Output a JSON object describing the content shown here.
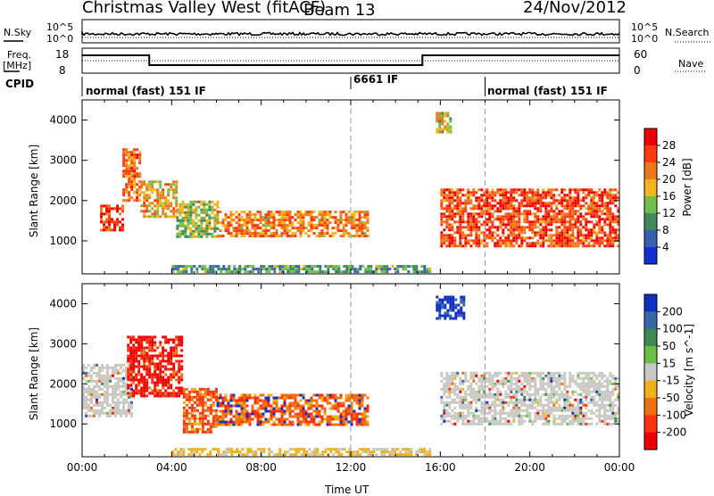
{
  "header": {
    "station": "Christmas Valley West (fitACF)",
    "beam": "Beam 13",
    "date": "24/Nov/2012"
  },
  "top_panel": {
    "nsky_label": "N.Sky",
    "nsky_ticks": [
      "10^5",
      "10^0"
    ],
    "nsearch_label": "N.Search",
    "nsearch_ticks": [
      "10^5",
      "10^0"
    ],
    "freq_label_1": "Freq.",
    "freq_label_2": "[MHz]",
    "freq_ticks": [
      "18",
      "8"
    ],
    "nave_label": "Nave",
    "nave_ticks": [
      "60",
      "0"
    ],
    "cpid_label": "CPID",
    "cpid_segments": [
      {
        "label": "normal (fast) 151 IF",
        "start_h": 0
      },
      {
        "label": "6661 IF",
        "start_h": 12
      },
      {
        "label": "normal (fast) 151 IF",
        "start_h": 18
      }
    ],
    "frequency_steps": [
      {
        "start_h": 0,
        "end_h": 3,
        "level": "high"
      },
      {
        "start_h": 3,
        "end_h": 15.2,
        "level": "low"
      },
      {
        "start_h": 15.2,
        "end_h": 24,
        "level": "high"
      }
    ]
  },
  "chart_data": [
    {
      "type": "heatmap",
      "panel": "power",
      "ylabel": "Slant Range [km]",
      "xlabel": "Time UT",
      "x_ticks": [
        "00:00",
        "04:00",
        "08:00",
        "12:00",
        "16:00",
        "20:00",
        "00:00"
      ],
      "xlim_hours": [
        0,
        24
      ],
      "y_ticks": [
        1000,
        2000,
        3000,
        4000
      ],
      "ylim_km": [
        180,
        4500
      ],
      "colorbar_label": "Power [dB]",
      "colorbar_ticks": [
        4,
        8,
        12,
        16,
        20,
        24,
        28
      ],
      "colorbar_range": [
        0,
        32
      ],
      "colors": [
        "#1030d0",
        "#3a5fb0",
        "#3f8a5c",
        "#6ec04a",
        "#f0b41e",
        "#f07818",
        "#ff3a10",
        "#ee0000"
      ],
      "echo_regions": [
        {
          "t0": 0.8,
          "t1": 1.8,
          "r0": 1300,
          "r1": 1900,
          "level": 0.9
        },
        {
          "t0": 1.8,
          "t1": 2.6,
          "r0": 2000,
          "r1": 3300,
          "level": 0.75
        },
        {
          "t0": 2.6,
          "t1": 4.2,
          "r0": 1600,
          "r1": 2500,
          "level": 0.6
        },
        {
          "t0": 4.2,
          "t1": 6.0,
          "r0": 1100,
          "r1": 2000,
          "level": 0.45
        },
        {
          "t0": 6.0,
          "t1": 12.8,
          "r0": 1100,
          "r1": 1750,
          "level": 0.7
        },
        {
          "t0": 15.8,
          "t1": 16.4,
          "r0": 3700,
          "r1": 4200,
          "level": 0.5
        },
        {
          "t0": 16.0,
          "t1": 24.0,
          "r0": 900,
          "r1": 2300,
          "level": 0.85
        },
        {
          "t0": 4.0,
          "t1": 15.5,
          "r0": 250,
          "r1": 400,
          "level": 0.3
        }
      ]
    },
    {
      "type": "heatmap",
      "panel": "velocity",
      "ylabel": "Slant Range [km]",
      "xlabel": "Time UT",
      "x_ticks": [
        "00:00",
        "04:00",
        "08:00",
        "12:00",
        "16:00",
        "20:00",
        "00:00"
      ],
      "xlim_hours": [
        0,
        24
      ],
      "y_ticks": [
        1000,
        2000,
        3000,
        4000
      ],
      "ylim_km": [
        180,
        4500
      ],
      "colorbar_label": "Velocity [m s^-1]",
      "colorbar_ticks": [
        200,
        100,
        50,
        15,
        -15,
        -50,
        -100,
        -200
      ],
      "colors": [
        "#1030c0",
        "#3c66a8",
        "#3c8a54",
        "#6cc040",
        "#c8c8c0",
        "#f0b018",
        "#f07010",
        "#ff3010",
        "#ee0000"
      ],
      "echo_regions": [
        {
          "t0": 0.0,
          "t1": 2.2,
          "r0": 1200,
          "r1": 2500,
          "class": "ground"
        },
        {
          "t0": 2.0,
          "t1": 4.5,
          "r0": 1700,
          "r1": 3200,
          "class": "neg-strong"
        },
        {
          "t0": 4.5,
          "t1": 6.0,
          "r0": 800,
          "r1": 1900,
          "class": "neg"
        },
        {
          "t0": 6.0,
          "t1": 12.8,
          "r0": 1000,
          "r1": 1750,
          "class": "neg-mid"
        },
        {
          "t0": 15.8,
          "t1": 17.0,
          "r0": 3600,
          "r1": 4200,
          "class": "pos"
        },
        {
          "t0": 16.0,
          "t1": 24.0,
          "r0": 1000,
          "r1": 2300,
          "class": "ground"
        },
        {
          "t0": 4.0,
          "t1": 15.5,
          "r0": 250,
          "r1": 400,
          "class": "neg-weak"
        }
      ]
    }
  ]
}
